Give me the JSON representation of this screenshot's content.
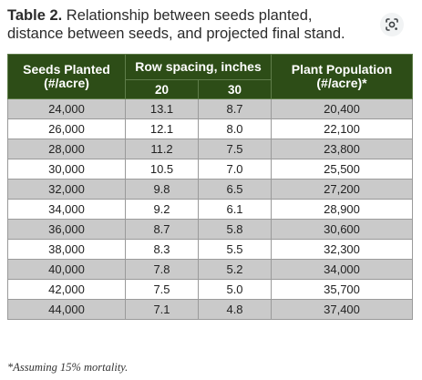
{
  "caption": {
    "label": "Table 2.",
    "text": " Relationship between seeds planted, distance between seeds, and projected final stand."
  },
  "lens_icon": "google-lens-icon",
  "table": {
    "header": {
      "seeds_planted": "Seeds Planted",
      "seeds_unit": "(#/acre)",
      "row_spacing": "Row spacing, inches",
      "spacing_20": "20",
      "spacing_30": "30",
      "plant_population": "Plant Population",
      "population_unit": "(#/acre)*"
    },
    "rows": [
      [
        "24,000",
        "13.1",
        "8.7",
        "20,400"
      ],
      [
        "26,000",
        "12.1",
        "8.0",
        "22,100"
      ],
      [
        "28,000",
        "11.2",
        "7.5",
        "23,800"
      ],
      [
        "30,000",
        "10.5",
        "7.0",
        "25,500"
      ],
      [
        "32,000",
        "9.8",
        "6.5",
        "27,200"
      ],
      [
        "34,000",
        "9.2",
        "6.1",
        "28,900"
      ],
      [
        "36,000",
        "8.7",
        "5.8",
        "30,600"
      ],
      [
        "38,000",
        "8.3",
        "5.5",
        "32,300"
      ],
      [
        "40,000",
        "7.8",
        "5.2",
        "34,000"
      ],
      [
        "42,000",
        "7.5",
        "5.0",
        "35,700"
      ],
      [
        "44,000",
        "7.1",
        "4.8",
        "37,400"
      ]
    ]
  },
  "footnote": "*Assuming 15% mortality.",
  "colors": {
    "header_bg": "#2d4d17",
    "shaded_row": "#cacaca",
    "plain_row": "#ffffff"
  }
}
